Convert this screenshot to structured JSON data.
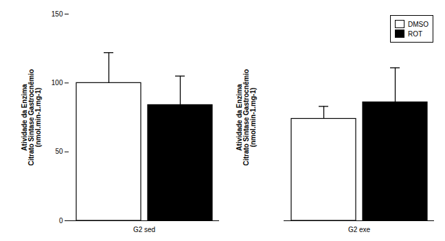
{
  "chart_data": {
    "type": "bar",
    "categories": [
      "G2 sed",
      "G2 exe"
    ],
    "series": [
      {
        "name": "DMSO",
        "color": "#ffffff",
        "values": [
          100,
          74
        ],
        "errors_lower": [
          0,
          0
        ],
        "errors_upper": [
          22,
          9
        ]
      },
      {
        "name": "ROT",
        "color": "#000000",
        "values": [
          84,
          86
        ],
        "errors_lower": [
          0,
          0
        ],
        "errors_upper": [
          21,
          25
        ]
      }
    ],
    "ylabel": "Atividade da Enzima\nCitrato Sintase Gastrocnêmio\n(nmol.min-1.mg-1)",
    "ylim": [
      0,
      150
    ],
    "yticks": [
      0,
      50,
      100,
      150
    ],
    "grid": false,
    "legend": "upper right"
  }
}
